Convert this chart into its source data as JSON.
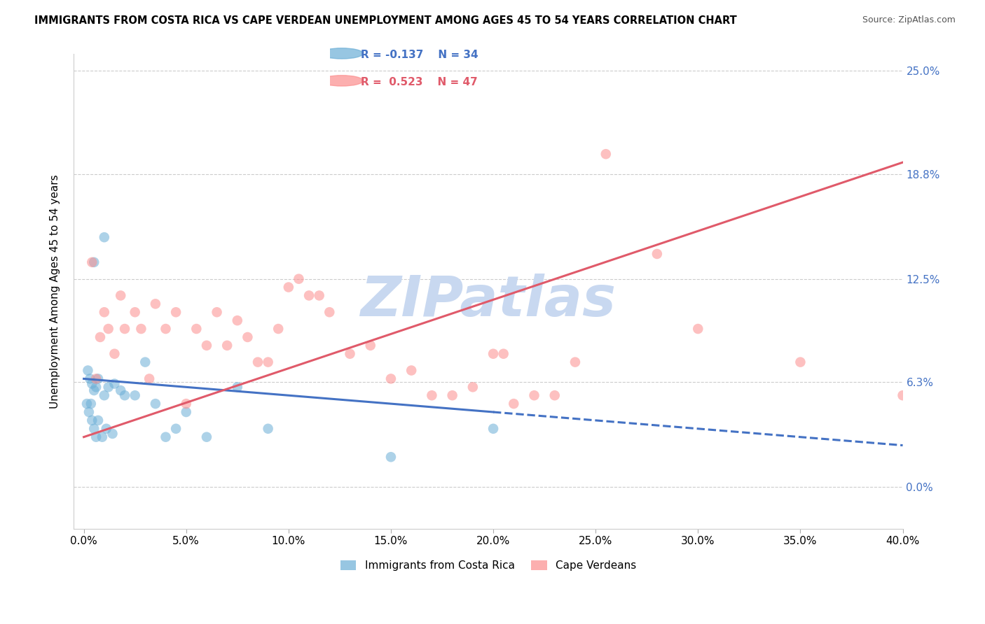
{
  "title": "IMMIGRANTS FROM COSTA RICA VS CAPE VERDEAN UNEMPLOYMENT AMONG AGES 45 TO 54 YEARS CORRELATION CHART",
  "source": "Source: ZipAtlas.com",
  "ylabel": "Unemployment Among Ages 45 to 54 years",
  "xlabel_ticks": [
    "0.0%",
    "5.0%",
    "10.0%",
    "15.0%",
    "20.0%",
    "25.0%",
    "30.0%",
    "35.0%",
    "40.0%"
  ],
  "ytick_labels": [
    "0.0%",
    "6.3%",
    "12.5%",
    "18.8%",
    "25.0%"
  ],
  "ytick_values": [
    0.0,
    6.3,
    12.5,
    18.8,
    25.0
  ],
  "xtick_values": [
    0.0,
    5.0,
    10.0,
    15.0,
    20.0,
    25.0,
    30.0,
    35.0,
    40.0
  ],
  "xlim": [
    -0.5,
    40.0
  ],
  "ylim": [
    -2.5,
    26.0
  ],
  "legend_label_blue": "Immigrants from Costa Rica",
  "legend_label_pink": "Cape Verdeans",
  "legend_r_blue": "R = -0.137",
  "legend_n_blue": "N = 34",
  "legend_r_pink": "R =  0.523",
  "legend_n_pink": "N = 47",
  "watermark": "ZIPatlas",
  "watermark_color": "#c8d8f0",
  "blue_color": "#6baed6",
  "pink_color": "#fc8d8d",
  "trend_blue_color": "#4472c4",
  "trend_pink_color": "#e05a6a",
  "blue_scatter_x": [
    0.5,
    1.0,
    0.2,
    0.3,
    0.4,
    0.5,
    0.6,
    0.7,
    1.0,
    1.2,
    1.5,
    1.8,
    0.15,
    0.25,
    0.35,
    0.4,
    0.5,
    0.6,
    0.7,
    0.9,
    1.1,
    1.4,
    2.0,
    2.5,
    3.0,
    3.5,
    4.0,
    4.5,
    5.0,
    6.0,
    7.5,
    9.0,
    15.0,
    20.0
  ],
  "blue_scatter_y": [
    13.5,
    15.0,
    7.0,
    6.5,
    6.2,
    5.8,
    6.0,
    6.5,
    5.5,
    6.0,
    6.2,
    5.8,
    5.0,
    4.5,
    5.0,
    4.0,
    3.5,
    3.0,
    4.0,
    3.0,
    3.5,
    3.2,
    5.5,
    5.5,
    7.5,
    5.0,
    3.0,
    3.5,
    4.5,
    3.0,
    6.0,
    3.5,
    1.8,
    3.5
  ],
  "pink_scatter_x": [
    0.4,
    0.6,
    0.8,
    1.0,
    1.2,
    1.5,
    1.8,
    2.0,
    2.5,
    2.8,
    3.2,
    3.5,
    4.0,
    4.5,
    5.0,
    5.5,
    6.0,
    6.5,
    7.0,
    7.5,
    8.0,
    8.5,
    9.0,
    9.5,
    10.0,
    10.5,
    11.0,
    11.5,
    12.0,
    13.0,
    14.0,
    15.0,
    16.0,
    17.0,
    18.0,
    19.0,
    20.0,
    20.5,
    21.0,
    22.0,
    23.0,
    24.0,
    25.5,
    28.0,
    30.0,
    35.0,
    40.0
  ],
  "pink_scatter_y": [
    13.5,
    6.5,
    9.0,
    10.5,
    9.5,
    8.0,
    11.5,
    9.5,
    10.5,
    9.5,
    6.5,
    11.0,
    9.5,
    10.5,
    5.0,
    9.5,
    8.5,
    10.5,
    8.5,
    10.0,
    9.0,
    7.5,
    7.5,
    9.5,
    12.0,
    12.5,
    11.5,
    11.5,
    10.5,
    8.0,
    8.5,
    6.5,
    7.0,
    5.5,
    5.5,
    6.0,
    8.0,
    8.0,
    5.0,
    5.5,
    5.5,
    7.5,
    20.0,
    14.0,
    9.5,
    7.5,
    5.5
  ],
  "blue_trend_x0": 0.0,
  "blue_trend_x1": 40.0,
  "blue_trend_y0": 6.5,
  "blue_trend_y1": 2.5,
  "blue_solid_end_x": 20.0,
  "pink_trend_x0": 0.0,
  "pink_trend_x1": 40.0,
  "pink_trend_y0": 3.0,
  "pink_trend_y1": 19.5
}
